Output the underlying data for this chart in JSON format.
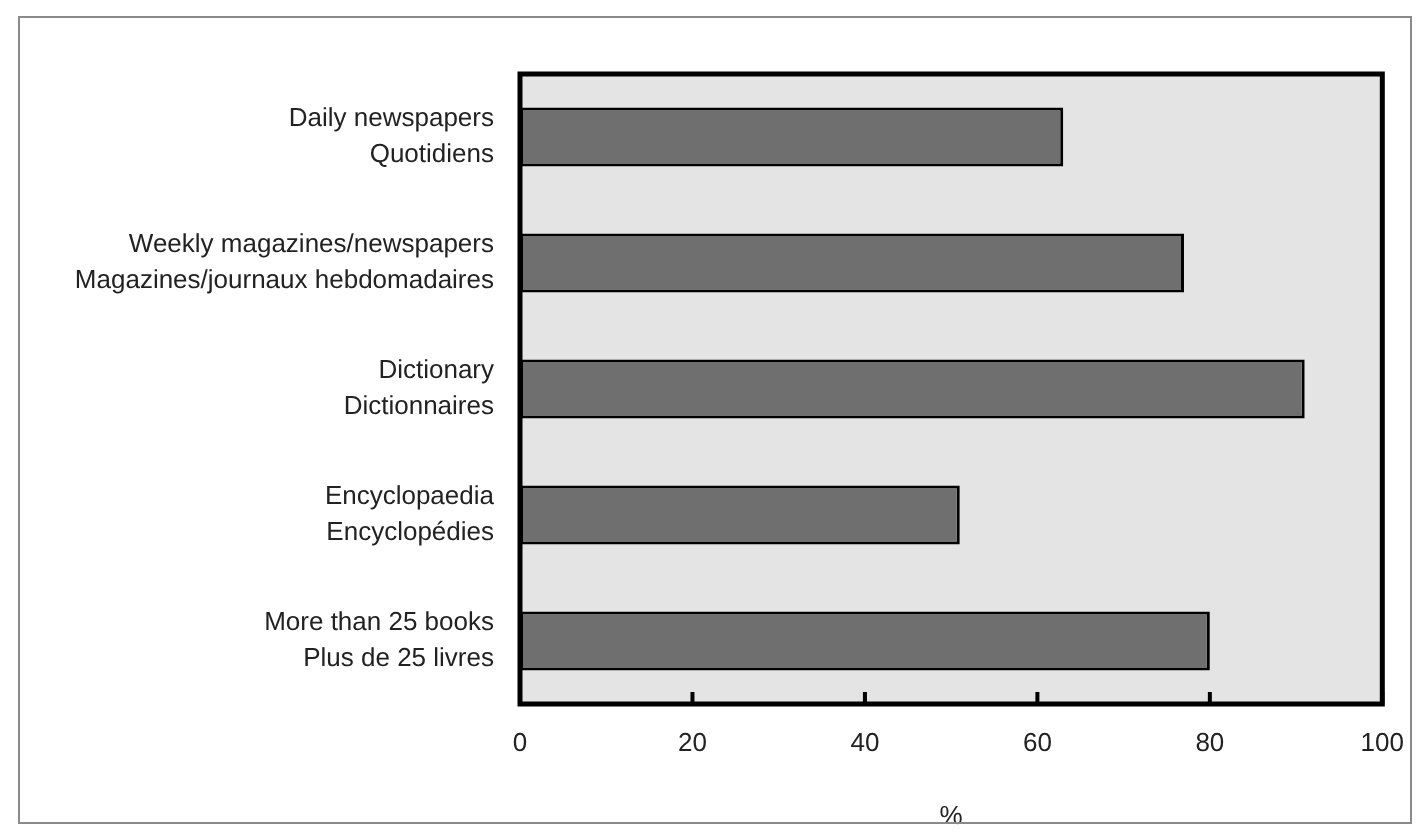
{
  "chart_data": {
    "type": "bar",
    "orientation": "horizontal",
    "categories": [
      "Daily newspapers\nQuotidiens",
      "Weekly magazines/newspapers\nMagazines/journaux hebdomadaires",
      "Dictionary\nDictionnaires",
      "Encyclopaedia\nEncyclopédies",
      "More than 25 books\nPlus de 25 livres"
    ],
    "values": [
      63,
      77,
      91,
      51,
      80
    ],
    "color": "#6f6f6f",
    "xlabel": "%",
    "xlim": [
      0,
      100
    ],
    "xticks": [
      0,
      20,
      40,
      60,
      80,
      100
    ]
  }
}
